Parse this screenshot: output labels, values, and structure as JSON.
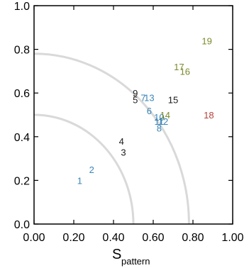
{
  "chart_data": {
    "type": "scatter",
    "xlabel": {
      "main": "S",
      "sub": "pattern"
    },
    "ylabel": "",
    "xlim": [
      0,
      1
    ],
    "ylim": [
      0,
      1
    ],
    "xticks": [
      "0.00",
      "0.20",
      "0.40",
      "0.60",
      "0.80",
      "1.00"
    ],
    "yticks": [
      "0.0",
      "0.2",
      "0.4",
      "0.6",
      "0.8",
      "1.0"
    ],
    "reference_arcs": [
      0.5,
      0.78
    ],
    "colors": {
      "blue": "#3b86b8",
      "black": "#1a1a1a",
      "olive": "#7a8a2a",
      "red": "#b5413b",
      "arc": "#d9d9d9"
    },
    "points": [
      {
        "label": "1",
        "x": 0.23,
        "y": 0.2,
        "color": "blue"
      },
      {
        "label": "2",
        "x": 0.29,
        "y": 0.25,
        "color": "blue"
      },
      {
        "label": "3",
        "x": 0.45,
        "y": 0.33,
        "color": "black"
      },
      {
        "label": "4",
        "x": 0.44,
        "y": 0.38,
        "color": "black"
      },
      {
        "label": "5",
        "x": 0.51,
        "y": 0.57,
        "color": "black"
      },
      {
        "label": "6",
        "x": 0.58,
        "y": 0.52,
        "color": "blue"
      },
      {
        "label": "7",
        "x": 0.55,
        "y": 0.58,
        "color": "blue"
      },
      {
        "label": "8",
        "x": 0.63,
        "y": 0.44,
        "color": "blue"
      },
      {
        "label": "9",
        "x": 0.51,
        "y": 0.6,
        "color": "black"
      },
      {
        "label": "10",
        "x": 0.63,
        "y": 0.49,
        "color": "blue"
      },
      {
        "label": "11",
        "x": 0.63,
        "y": 0.47,
        "color": "blue"
      },
      {
        "label": "12",
        "x": 0.65,
        "y": 0.47,
        "color": "blue"
      },
      {
        "label": "13",
        "x": 0.58,
        "y": 0.58,
        "color": "blue"
      },
      {
        "label": "14",
        "x": 0.66,
        "y": 0.5,
        "color": "olive"
      },
      {
        "label": "15",
        "x": 0.7,
        "y": 0.57,
        "color": "black"
      },
      {
        "label": "16",
        "x": 0.76,
        "y": 0.7,
        "color": "olive"
      },
      {
        "label": "17",
        "x": 0.73,
        "y": 0.72,
        "color": "olive"
      },
      {
        "label": "18",
        "x": 0.88,
        "y": 0.5,
        "color": "red"
      },
      {
        "label": "19",
        "x": 0.87,
        "y": 0.84,
        "color": "olive"
      }
    ]
  }
}
